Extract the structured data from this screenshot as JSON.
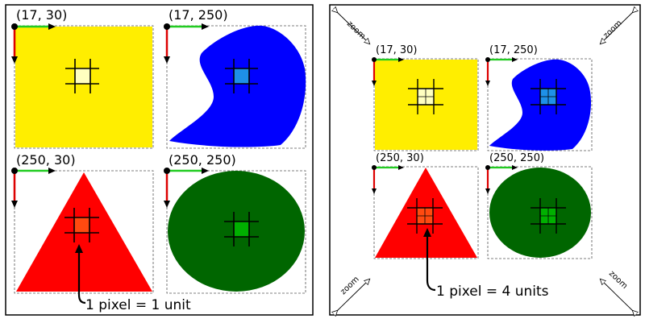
{
  "left_panel": {
    "cells": [
      {
        "coord_label": "(17, 30)",
        "shape": "square",
        "fill": "#ffee00",
        "center_fill": "#ffffc0"
      },
      {
        "coord_label": "(17, 250)",
        "shape": "blob",
        "fill": "#0000ff",
        "center_fill": "#1e90e8"
      },
      {
        "coord_label": "(250, 30)",
        "shape": "triangle",
        "fill": "#ff0000",
        "center_fill": "#ff4a10"
      },
      {
        "coord_label": "(250, 250)",
        "shape": "ellipse",
        "fill": "#006600",
        "center_fill": "#00b000"
      }
    ],
    "caption": "1 pixel = 1 unit"
  },
  "right_panel": {
    "cells": [
      {
        "coord_label": "(17, 30)",
        "shape": "square",
        "fill": "#ffee00",
        "center_fill": "#ffffc0"
      },
      {
        "coord_label": "(17, 250)",
        "shape": "blob",
        "fill": "#0000ff",
        "center_fill": "#1e90e8"
      },
      {
        "coord_label": "(250, 30)",
        "shape": "triangle",
        "fill": "#ff0000",
        "center_fill": "#ff4a10"
      },
      {
        "coord_label": "(250, 250)",
        "shape": "ellipse",
        "fill": "#006600",
        "center_fill": "#00b000"
      }
    ],
    "caption": "1 pixel = 4 units",
    "zoom_labels": [
      "zoom",
      "zoom",
      "zoom",
      "zoom"
    ]
  },
  "colors": {
    "x_axis_arrow": "#22cc22",
    "y_axis_arrow": "#dd0000"
  }
}
